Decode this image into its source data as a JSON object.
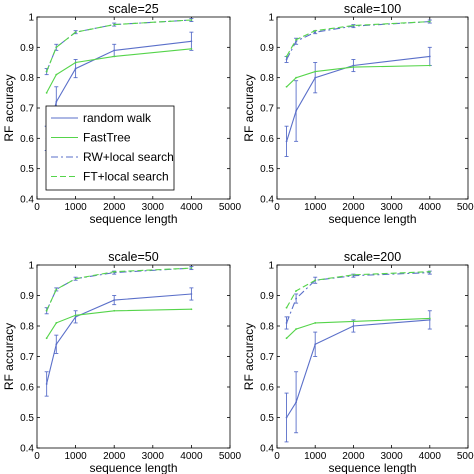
{
  "chart_data": [
    {
      "type": "line",
      "title": "scale=25",
      "xlabel": "sequence length",
      "ylabel": "RF accuracy",
      "xlim": [
        0,
        5000
      ],
      "ylim": [
        0.4,
        1
      ],
      "xticks": [
        "0",
        "1000",
        "2000",
        "3000",
        "4000",
        "5000"
      ],
      "yticks": [
        "0.4",
        "0.5",
        "0.6",
        "0.7",
        "0.8",
        "0.9",
        "1"
      ],
      "x": [
        250,
        500,
        1000,
        2000,
        4000
      ],
      "legend": {
        "position": "bottom-left",
        "entries": [
          "random walk",
          "FastTree",
          "RW+local search",
          "FT+local search"
        ]
      },
      "series": [
        {
          "name": "random walk",
          "values": [
            0.6,
            0.72,
            0.83,
            0.89,
            0.92
          ],
          "err": [
            0.04,
            0.05,
            0.03,
            0.02,
            0.03
          ],
          "color": "#5a6fc9",
          "style": "solid"
        },
        {
          "name": "FastTree",
          "values": [
            0.75,
            0.81,
            0.85,
            0.87,
            0.895
          ],
          "err": [
            0,
            0,
            0,
            0,
            0
          ],
          "color": "#55d44a",
          "style": "solid"
        },
        {
          "name": "RW+local search",
          "values": [
            0.82,
            0.9,
            0.95,
            0.975,
            0.99
          ],
          "err": [
            0.01,
            0.01,
            0.005,
            0.005,
            0.005
          ],
          "color": "#5a6fc9",
          "style": "dashdot"
        },
        {
          "name": "FT+local search",
          "values": [
            0.82,
            0.9,
            0.95,
            0.975,
            0.99
          ],
          "err": [
            0,
            0,
            0,
            0,
            0
          ],
          "color": "#55d44a",
          "style": "dashed"
        }
      ]
    },
    {
      "type": "line",
      "title": "scale=100",
      "xlabel": "sequence length",
      "ylabel": "RF accuracy",
      "xlim": [
        0,
        5000
      ],
      "ylim": [
        0.4,
        1
      ],
      "xticks": [
        "0",
        "1000",
        "2000",
        "3000",
        "4000",
        "5000"
      ],
      "yticks": [
        "0.4",
        "0.5",
        "0.6",
        "0.7",
        "0.8",
        "0.9",
        "1"
      ],
      "x": [
        250,
        500,
        1000,
        2000,
        4000
      ],
      "series": [
        {
          "name": "random walk",
          "values": [
            0.59,
            0.69,
            0.8,
            0.84,
            0.87
          ],
          "err": [
            0.05,
            0.1,
            0.05,
            0.02,
            0.03
          ],
          "color": "#5a6fc9",
          "style": "solid"
        },
        {
          "name": "FastTree",
          "values": [
            0.77,
            0.8,
            0.82,
            0.835,
            0.84
          ],
          "err": [
            0,
            0,
            0,
            0,
            0
          ],
          "color": "#55d44a",
          "style": "solid"
        },
        {
          "name": "RW+local search",
          "values": [
            0.86,
            0.92,
            0.95,
            0.97,
            0.985
          ],
          "err": [
            0.01,
            0.01,
            0.005,
            0.005,
            0.005
          ],
          "color": "#5a6fc9",
          "style": "dashdot"
        },
        {
          "name": "FT+local search",
          "values": [
            0.87,
            0.925,
            0.955,
            0.972,
            0.985
          ],
          "err": [
            0,
            0,
            0,
            0,
            0
          ],
          "color": "#55d44a",
          "style": "dashed"
        }
      ]
    },
    {
      "type": "line",
      "title": "scale=50",
      "xlabel": "sequence length",
      "ylabel": "RF accuracy",
      "xlim": [
        0,
        5000
      ],
      "ylim": [
        0.4,
        1
      ],
      "xticks": [
        "0",
        "1000",
        "2000",
        "3000",
        "4000",
        "5000"
      ],
      "yticks": [
        "0.4",
        "0.5",
        "0.6",
        "0.7",
        "0.8",
        "0.9",
        "1"
      ],
      "x": [
        250,
        500,
        1000,
        2000,
        4000
      ],
      "series": [
        {
          "name": "random walk",
          "values": [
            0.61,
            0.74,
            0.83,
            0.885,
            0.905
          ],
          "err": [
            0.04,
            0.03,
            0.02,
            0.015,
            0.02
          ],
          "color": "#5a6fc9",
          "style": "solid"
        },
        {
          "name": "FastTree",
          "values": [
            0.76,
            0.81,
            0.835,
            0.85,
            0.855
          ],
          "err": [
            0,
            0,
            0,
            0,
            0
          ],
          "color": "#55d44a",
          "style": "solid"
        },
        {
          "name": "RW+local search",
          "values": [
            0.85,
            0.92,
            0.955,
            0.975,
            0.99
          ],
          "err": [
            0.01,
            0.005,
            0.005,
            0.005,
            0.005
          ],
          "color": "#5a6fc9",
          "style": "dashdot"
        },
        {
          "name": "FT+local search",
          "values": [
            0.85,
            0.92,
            0.955,
            0.978,
            0.99
          ],
          "err": [
            0,
            0,
            0,
            0,
            0
          ],
          "color": "#55d44a",
          "style": "dashed"
        }
      ]
    },
    {
      "type": "line",
      "title": "scale=200",
      "xlabel": "sequence length",
      "ylabel": "RF accuracy",
      "xlim": [
        0,
        5000
      ],
      "ylim": [
        0.4,
        1
      ],
      "xticks": [
        "0",
        "1000",
        "2000",
        "3000",
        "4000",
        "5000"
      ],
      "yticks": [
        "0.4",
        "0.5",
        "0.6",
        "0.7",
        "0.8",
        "0.9",
        "1"
      ],
      "x": [
        250,
        500,
        1000,
        2000,
        4000
      ],
      "series": [
        {
          "name": "random walk",
          "values": [
            0.5,
            0.55,
            0.74,
            0.8,
            0.82
          ],
          "err": [
            0.08,
            0.1,
            0.04,
            0.02,
            0.03
          ],
          "color": "#5a6fc9",
          "style": "solid"
        },
        {
          "name": "FastTree",
          "values": [
            0.76,
            0.79,
            0.81,
            0.815,
            0.825
          ],
          "err": [
            0,
            0,
            0,
            0,
            0
          ],
          "color": "#55d44a",
          "style": "solid"
        },
        {
          "name": "RW+local search",
          "values": [
            0.81,
            0.89,
            0.95,
            0.965,
            0.975
          ],
          "err": [
            0.02,
            0.015,
            0.01,
            0.005,
            0.005
          ],
          "color": "#5a6fc9",
          "style": "dashdot"
        },
        {
          "name": "FT+local search",
          "values": [
            0.86,
            0.915,
            0.95,
            0.968,
            0.978
          ],
          "err": [
            0,
            0,
            0,
            0,
            0
          ],
          "color": "#55d44a",
          "style": "dashed"
        }
      ]
    }
  ]
}
